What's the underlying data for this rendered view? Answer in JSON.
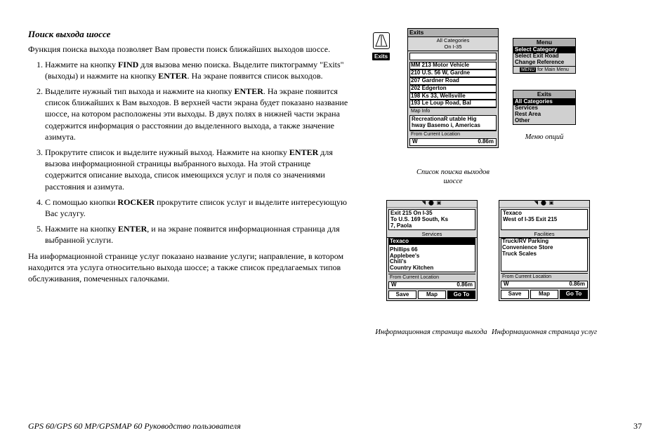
{
  "section_title": "Поиск выхода шоссе",
  "intro": "Функция поиска выхода позволяет Вам провести поиск ближайших выходов шоссе.",
  "steps": [
    "Нажмите на кнопку <b>FIND</b> для вызова меню поиска. Выделите пиктограмму \"Exits\" (выходы) и нажмите на кнопку <b>ENTER</b>. На экране появится список выходов.",
    "Выделите нужный тип выхода и нажмите на кнопку <b>ENTER</b>. На экране появится список ближайших к Вам выходов. В верхней части экрана будет показано название шоссе, на котором расположены эти выходы. В двух полях в нижней части экрана содержится информация о расстоянии до выделенного выхода, а также значение азимута.",
    "Прокрутите список и выделите нужный выход. Нажмите на кнопку <b>ENTER</b> для вызова информационной страницы выбранного выхода. На этой странице содержится описание выхода, список имеющихся услуг и поля со значениями расстояния и азимута.",
    "С помощью кнопки <b>ROCKER</b> прокрутите список услуг и выделите интересующую Вас услугу.",
    "Нажмите на кнопку <b>ENTER</b>, и на экране появится информационная страница для выбранной услуги."
  ],
  "closing": "На информационной странице услуг показано название услуги; направление, в котором находится эта услуга относительно выхода шоссе; а также список предлагаемых типов обслуживания, помеченных галочками.",
  "footer_left": "GPS 60/GPS 60 MP/GPSMAP 60  Руководство пользователя",
  "footer_page": "37",
  "icon": {
    "label": "Exits"
  },
  "screen_exits": {
    "header": "Exits",
    "sub": "All Categories\nOn I-35",
    "items": [
      "215 U.S. 169 South, K",
      "MM 213 Motor Vehicle",
      "210 U.S. 56 W, Gardne",
      "207 Gardner Road",
      "202 Edgerton",
      "198 Ks 33, Wellsville",
      "193 Le Loup Road, Bal"
    ],
    "mapinfo_label": "Map Info",
    "mapinfo": "RecreationaR utable Hig\nhway Basemo i, Americas",
    "from_label": "From Current Location",
    "bearing_dir": "W",
    "bearing_dist": "0.86m"
  },
  "caption_exits": "Список поиска выходов шоссе",
  "menu1": {
    "header": "Menu",
    "rows": [
      "Select Category",
      "Select Exit Road",
      "Change Reference"
    ],
    "hint_key": "MENU",
    "hint_text": "for Main Menu"
  },
  "menu2": {
    "header": "Exits",
    "rows": [
      "All Categories",
      "Services",
      "Rest Area",
      "Other"
    ]
  },
  "caption_menu": "Меню опций",
  "screen_info": {
    "title": "Exit 215 On I-35\nTo U.S. 169 South, Ks\n7, Paola",
    "services_label": "Services",
    "services": [
      "Texaco",
      "Phillips 66",
      "Applebee's",
      "Chili's",
      "Country Kitchen"
    ],
    "from_label": "From Current Location",
    "bearing_dir": "W",
    "bearing_dist": "0.86m",
    "btns": [
      "Save",
      "Map",
      "Go To"
    ]
  },
  "caption_info": "Информационная страница выхода",
  "screen_svc": {
    "title": "Texaco\nWest of I-35 Exit 215",
    "fac_label": "Facilities",
    "facilities": [
      "Truck/RV Parking",
      "Convenience Store",
      "Truck Scales"
    ],
    "from_label": "From Current Location",
    "bearing_dir": "W",
    "bearing_dist": "0.86m",
    "btns": [
      "Save",
      "Map",
      "Go To"
    ]
  },
  "caption_svc": "Информационная страница услуг"
}
